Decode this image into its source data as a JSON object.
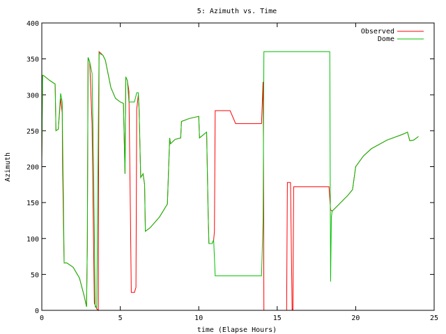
{
  "chart_data": {
    "type": "line",
    "title": "5: Azimuth vs. Time",
    "xlabel": "time (Elapse Hours)",
    "ylabel": "Azimuth",
    "xlim": [
      0,
      25
    ],
    "ylim": [
      0,
      400
    ],
    "xticks": [
      "0",
      "5",
      "10",
      "15",
      "20",
      "25"
    ],
    "yticks": [
      "0",
      "50",
      "100",
      "150",
      "200",
      "250",
      "300",
      "350",
      "400"
    ],
    "grid": false,
    "legend_position": "top-right",
    "series": [
      {
        "name": "Observed",
        "color": "#ff0000",
        "points": [
          [
            0.0,
            210
          ],
          [
            0.05,
            327
          ],
          [
            0.1,
            327
          ],
          [
            0.5,
            320
          ],
          [
            0.85,
            315
          ],
          [
            0.9,
            250
          ],
          [
            1.05,
            252
          ],
          [
            1.2,
            295
          ],
          [
            1.3,
            275
          ],
          [
            1.32,
            210
          ],
          [
            1.38,
            120
          ],
          [
            1.42,
            66
          ],
          [
            1.6,
            66
          ],
          [
            2.0,
            60
          ],
          [
            2.4,
            45
          ],
          [
            2.7,
            20
          ],
          [
            2.85,
            5
          ],
          [
            2.9,
            90
          ],
          [
            2.95,
            352
          ],
          [
            3.05,
            346
          ],
          [
            3.2,
            260
          ],
          [
            3.3,
            90
          ],
          [
            3.35,
            10
          ],
          [
            3.5,
            2
          ],
          [
            3.6,
            0
          ],
          [
            3.62,
            200
          ],
          [
            3.65,
            360
          ],
          [
            3.9,
            355
          ],
          [
            4.05,
            348
          ],
          [
            4.4,
            310
          ],
          [
            4.7,
            295
          ],
          [
            5.0,
            290
          ],
          [
            5.2,
            288
          ],
          [
            5.3,
            190
          ],
          [
            5.35,
            325
          ],
          [
            5.45,
            320
          ],
          [
            5.55,
            305
          ],
          [
            5.65,
            130
          ],
          [
            5.7,
            25
          ],
          [
            5.9,
            25
          ],
          [
            6.0,
            32
          ],
          [
            6.05,
            280
          ],
          [
            6.15,
            300
          ],
          [
            6.2,
            280
          ],
          [
            6.3,
            185
          ],
          [
            6.45,
            190
          ],
          [
            6.55,
            175
          ],
          [
            6.6,
            110
          ],
          [
            6.9,
            115
          ],
          [
            7.5,
            130
          ],
          [
            8.0,
            148
          ],
          [
            8.15,
            240
          ],
          [
            8.2,
            232
          ],
          [
            8.5,
            238
          ],
          [
            8.85,
            240
          ],
          [
            8.9,
            263
          ],
          [
            9.4,
            267
          ],
          [
            10.0,
            270
          ],
          [
            10.05,
            240
          ],
          [
            10.5,
            248
          ],
          [
            10.6,
            135
          ],
          [
            10.65,
            93
          ],
          [
            10.85,
            93
          ],
          [
            10.95,
            98
          ],
          [
            11.0,
            110
          ],
          [
            11.05,
            278
          ],
          [
            12.0,
            278
          ],
          [
            12.35,
            260
          ],
          [
            14.0,
            260
          ],
          [
            14.1,
            318
          ],
          [
            14.12,
            240
          ],
          [
            14.15,
            0
          ],
          [
            15.6,
            0
          ],
          [
            15.65,
            178
          ],
          [
            15.85,
            178
          ],
          [
            15.95,
            0
          ],
          [
            16.0,
            0
          ],
          [
            16.05,
            172
          ],
          [
            18.3,
            172
          ],
          [
            18.4,
            140
          ],
          [
            18.5,
            138
          ],
          [
            19.5,
            160
          ],
          [
            19.8,
            168
          ],
          [
            20.0,
            200
          ],
          [
            20.5,
            215
          ],
          [
            21.0,
            225
          ],
          [
            22.0,
            237
          ],
          [
            23.0,
            245
          ],
          [
            23.3,
            248
          ],
          [
            23.45,
            236
          ],
          [
            23.7,
            237
          ],
          [
            24.0,
            242
          ]
        ]
      },
      {
        "name": "Dome",
        "color": "#00c000",
        "points": [
          [
            0.0,
            210
          ],
          [
            0.05,
            327
          ],
          [
            0.1,
            327
          ],
          [
            0.5,
            320
          ],
          [
            0.85,
            315
          ],
          [
            0.9,
            250
          ],
          [
            1.05,
            252
          ],
          [
            1.2,
            302
          ],
          [
            1.3,
            290
          ],
          [
            1.32,
            250
          ],
          [
            1.38,
            150
          ],
          [
            1.42,
            66
          ],
          [
            1.6,
            66
          ],
          [
            2.0,
            60
          ],
          [
            2.4,
            45
          ],
          [
            2.7,
            20
          ],
          [
            2.85,
            5
          ],
          [
            2.9,
            90
          ],
          [
            2.95,
            352
          ],
          [
            3.05,
            346
          ],
          [
            3.2,
            330
          ],
          [
            3.3,
            200
          ],
          [
            3.4,
            5
          ],
          [
            3.5,
            3
          ],
          [
            3.62,
            300
          ],
          [
            3.65,
            358
          ],
          [
            3.9,
            355
          ],
          [
            4.05,
            348
          ],
          [
            4.4,
            310
          ],
          [
            4.7,
            295
          ],
          [
            5.0,
            290
          ],
          [
            5.2,
            288
          ],
          [
            5.3,
            190
          ],
          [
            5.35,
            325
          ],
          [
            5.45,
            320
          ],
          [
            5.55,
            290
          ],
          [
            5.9,
            290
          ],
          [
            6.05,
            303
          ],
          [
            6.15,
            303
          ],
          [
            6.2,
            280
          ],
          [
            6.3,
            185
          ],
          [
            6.45,
            190
          ],
          [
            6.55,
            175
          ],
          [
            6.6,
            110
          ],
          [
            6.9,
            115
          ],
          [
            7.5,
            130
          ],
          [
            8.0,
            148
          ],
          [
            8.15,
            240
          ],
          [
            8.2,
            232
          ],
          [
            8.5,
            238
          ],
          [
            8.85,
            240
          ],
          [
            8.9,
            263
          ],
          [
            9.4,
            267
          ],
          [
            10.0,
            270
          ],
          [
            10.05,
            240
          ],
          [
            10.5,
            248
          ],
          [
            10.6,
            135
          ],
          [
            10.65,
            93
          ],
          [
            10.85,
            93
          ],
          [
            10.95,
            98
          ],
          [
            11.05,
            48
          ],
          [
            14.0,
            48
          ],
          [
            14.1,
            125
          ],
          [
            14.15,
            360
          ],
          [
            18.35,
            360
          ],
          [
            18.4,
            40
          ],
          [
            18.45,
            130
          ],
          [
            18.5,
            138
          ],
          [
            19.5,
            160
          ],
          [
            19.8,
            168
          ],
          [
            20.0,
            200
          ],
          [
            20.5,
            215
          ],
          [
            21.0,
            225
          ],
          [
            22.0,
            237
          ],
          [
            23.0,
            245
          ],
          [
            23.3,
            248
          ],
          [
            23.45,
            236
          ],
          [
            23.7,
            237
          ],
          [
            24.0,
            242
          ]
        ]
      }
    ]
  }
}
